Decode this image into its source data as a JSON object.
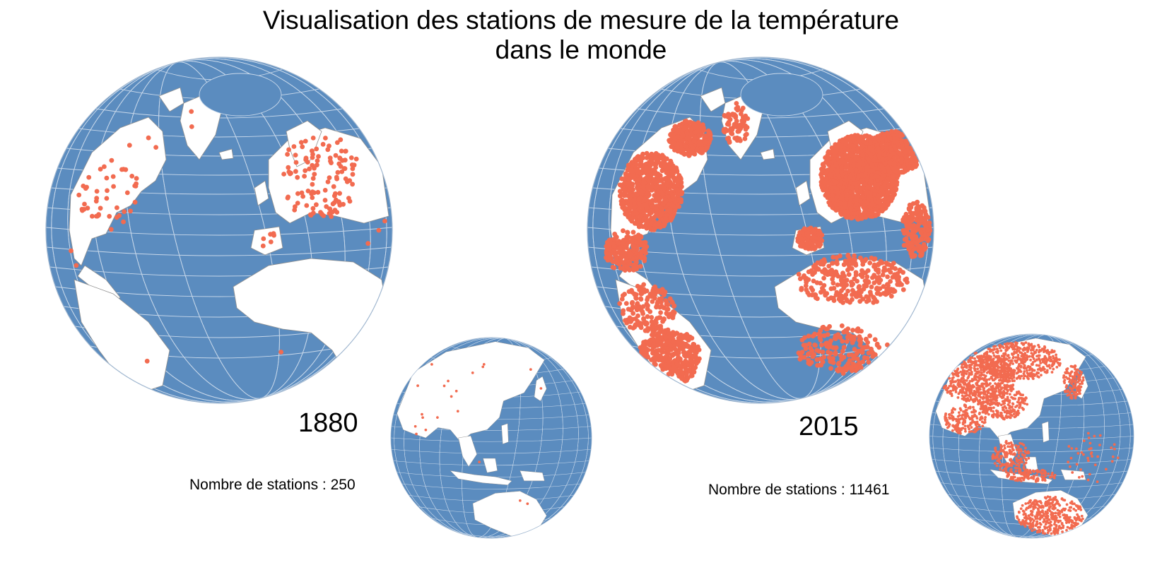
{
  "title": {
    "line1": "Visualisation des stations de mesure de la température",
    "line2": "dans le monde"
  },
  "colors": {
    "ocean": "#5b8cbf",
    "land": "#ffffff",
    "border": "#8f8f8f",
    "graticule": "#c8d8ea",
    "station": "#f26b50"
  },
  "panels": [
    {
      "year": "1880",
      "station_label": "Nombre de stations : 250",
      "station_count": 250,
      "density": "sparse"
    },
    {
      "year": "2015",
      "station_label": "Nombre de stations : 11461",
      "station_count": 11461,
      "density": "dense"
    }
  ]
}
